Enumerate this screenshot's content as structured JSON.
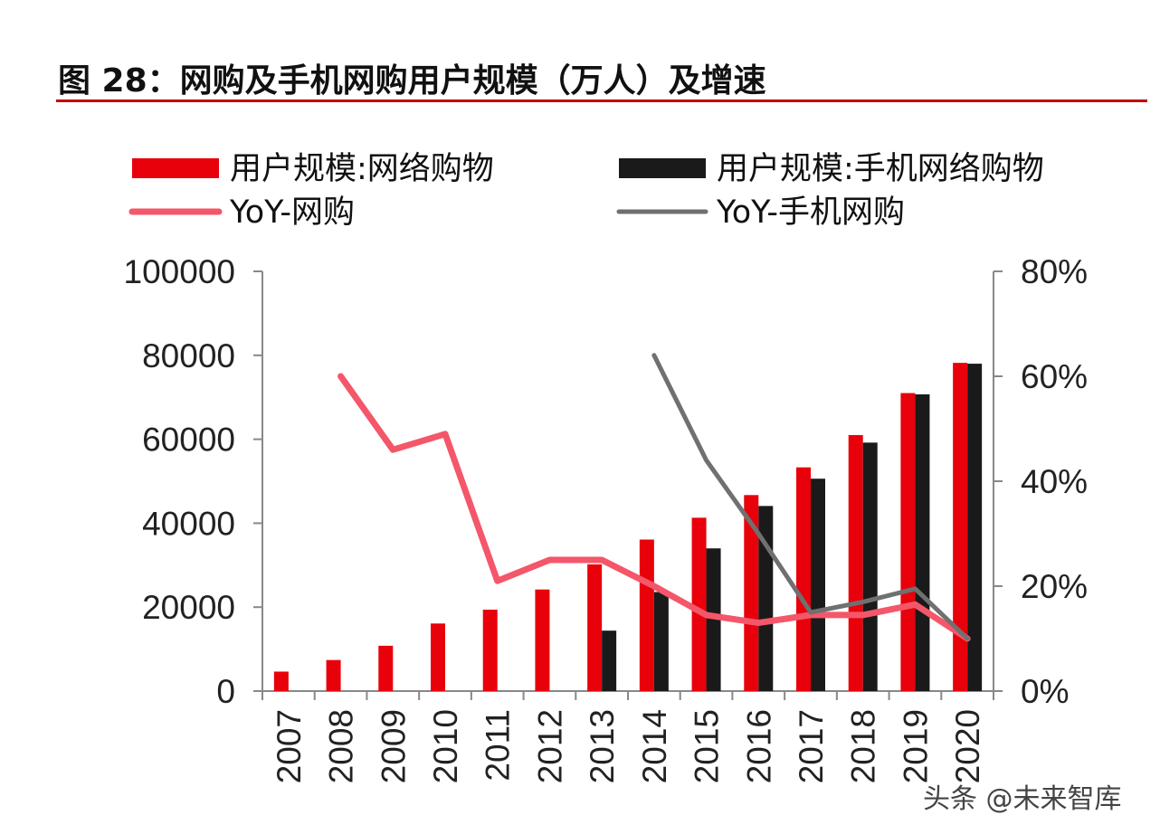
{
  "title": "图 28：网购及手机网购用户规模（万人）及增速",
  "watermark": "头条 @未来智库",
  "colors": {
    "bar_online": "#e8000b",
    "bar_mobile": "#1a1a1a",
    "line_online": "#f4566a",
    "line_mobile": "#707070",
    "title_rule": "#c00000",
    "axis": "#888888"
  },
  "chart_data": {
    "type": "bar",
    "categories": [
      "2007",
      "2008",
      "2009",
      "2010",
      "2011",
      "2012",
      "2013",
      "2014",
      "2015",
      "2016",
      "2017",
      "2018",
      "2019",
      "2020"
    ],
    "left_axis": {
      "ylim": [
        0,
        100000
      ],
      "ticks": [
        "0",
        "20000",
        "40000",
        "60000",
        "80000",
        "100000"
      ]
    },
    "right_axis": {
      "ylim": [
        0,
        0.8
      ],
      "ticks": [
        "0%",
        "20%",
        "40%",
        "60%",
        "80%"
      ]
    },
    "series": [
      {
        "name": "用户规模:网络购物",
        "type": "bar",
        "axis": "left",
        "values": [
          4641,
          7400,
          10800,
          16100,
          19400,
          24200,
          30200,
          36100,
          41300,
          46700,
          53300,
          61000,
          71000,
          78200
        ]
      },
      {
        "name": "用户规模:手机网络购物",
        "type": "bar",
        "axis": "left",
        "values": [
          null,
          null,
          null,
          null,
          null,
          null,
          14400,
          23600,
          34000,
          44100,
          50600,
          59200,
          70700,
          78000
        ]
      },
      {
        "name": "YoY-网购",
        "type": "line",
        "axis": "right",
        "values": [
          null,
          0.6,
          0.46,
          0.49,
          0.21,
          0.25,
          0.25,
          0.2,
          0.145,
          0.13,
          0.145,
          0.145,
          0.165,
          0.1
        ]
      },
      {
        "name": "YoY-手机网购",
        "type": "line",
        "axis": "right",
        "values": [
          null,
          null,
          null,
          null,
          null,
          null,
          null,
          0.64,
          0.44,
          0.3,
          0.15,
          0.17,
          0.195,
          0.1
        ]
      }
    ]
  }
}
